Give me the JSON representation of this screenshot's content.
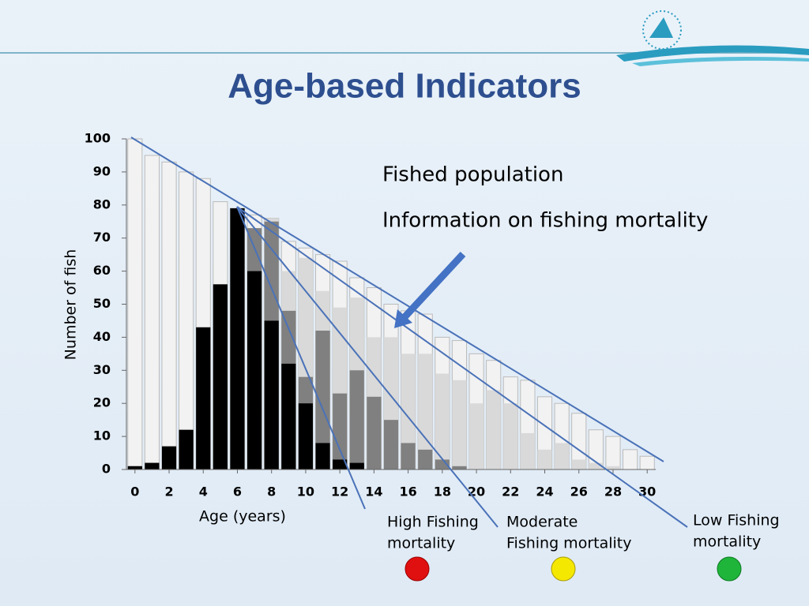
{
  "chart_data": {
    "type": "bar",
    "title": "Age-based Indicators",
    "annotations": [
      "Fished population",
      "Information on fishing mortality"
    ],
    "ylabel": "Number of fish",
    "xlabel": "Age (years)",
    "curve_labels": [
      [
        "High Fishing",
        "mortality"
      ],
      [
        "Moderate",
        "Fishing mortality"
      ],
      [
        "Low Fishing",
        "mortality"
      ]
    ],
    "x": [
      0,
      1,
      2,
      3,
      4,
      5,
      6,
      7,
      8,
      9,
      10,
      11,
      12,
      13,
      14,
      15,
      16,
      17,
      18,
      19,
      20,
      21,
      22,
      23,
      24,
      25,
      26,
      27,
      28,
      29,
      30
    ],
    "series": [
      {
        "color": "#f2f2f2",
        "values": [
          100,
          95,
          93,
          90,
          88,
          81,
          79,
          77,
          76,
          69,
          67,
          65,
          63,
          58,
          55,
          50,
          48,
          47,
          40,
          39,
          35,
          33,
          28,
          27,
          22,
          20,
          17,
          12,
          10,
          6,
          4
        ]
      },
      {
        "color": "#d9d9d9",
        "values": [
          1,
          2,
          7,
          12,
          43,
          56,
          79,
          73,
          76,
          60,
          64,
          54,
          49,
          52,
          40,
          40,
          35,
          35,
          29,
          27,
          20,
          24,
          20,
          11,
          6,
          8,
          3,
          2,
          1,
          0,
          0
        ]
      },
      {
        "color": "#808080",
        "values": [
          1,
          2,
          7,
          12,
          43,
          56,
          79,
          73,
          75,
          48,
          28,
          42,
          23,
          30,
          22,
          15,
          8,
          6,
          3,
          1,
          0,
          0,
          0,
          0,
          0,
          0,
          0,
          0,
          0,
          0,
          0
        ]
      },
      {
        "color": "#000000",
        "values": [
          1,
          2,
          7,
          12,
          43,
          56,
          79,
          60,
          45,
          32,
          20,
          8,
          3,
          2,
          0,
          0,
          0,
          0,
          0,
          0,
          0,
          0,
          0,
          0,
          0,
          0,
          0,
          0,
          0,
          0,
          0
        ]
      }
    ],
    "xlim": [
      -0.5,
      30.5
    ],
    "xticks": [
      0,
      2,
      4,
      6,
      8,
      10,
      12,
      14,
      16,
      18,
      20,
      22,
      24,
      26,
      28,
      30
    ],
    "ylim": [
      0,
      100
    ],
    "yticks": [
      0,
      10,
      20,
      30,
      40,
      50,
      60,
      70,
      80,
      90,
      100
    ]
  }
}
